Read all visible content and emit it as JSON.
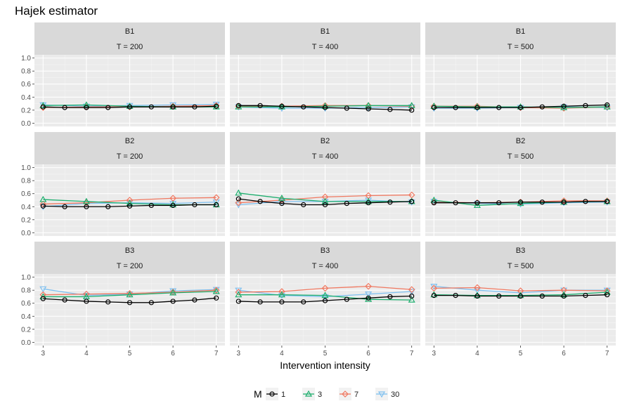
{
  "chart_data": {
    "type": "line",
    "title": "Hajek estimator",
    "xlabel": "Intervention intensity",
    "ylabel": "",
    "xlim": [
      3,
      7
    ],
    "ylim": [
      0,
      1
    ],
    "x_ticks": [
      "3",
      "4",
      "5",
      "6",
      "7"
    ],
    "y_ticks": [
      "0.0",
      "0.2",
      "0.4",
      "0.6",
      "0.8",
      "1.0"
    ],
    "facets": {
      "rows": [
        "B1",
        "B2",
        "B3"
      ],
      "cols": [
        "T = 200",
        "T = 400",
        "T = 500"
      ]
    },
    "legend": {
      "title": "M",
      "placement": "bottom",
      "entries": [
        {
          "name": "1",
          "color": "#000000",
          "marker": "circle"
        },
        {
          "name": "3",
          "color": "#1EAE6E",
          "marker": "triangle-up"
        },
        {
          "name": "7",
          "color": "#F07860",
          "marker": "diamond"
        },
        {
          "name": "30",
          "color": "#7EC0F0",
          "marker": "triangle-down"
        }
      ]
    },
    "panels": [
      {
        "row": "B1",
        "col": "T = 200",
        "series": [
          {
            "name": "1",
            "x": [
              3,
              3.5,
              4,
              4.5,
              5,
              5.5,
              6,
              6.5,
              7
            ],
            "values": [
              0.25,
              0.24,
              0.24,
              0.24,
              0.25,
              0.25,
              0.25,
              0.25,
              0.26
            ]
          },
          {
            "name": "3",
            "x": [
              3,
              4,
              5,
              6,
              7
            ],
            "values": [
              0.27,
              0.28,
              0.26,
              0.25,
              0.25
            ]
          },
          {
            "name": "7",
            "x": [
              3,
              4,
              5,
              6,
              7
            ],
            "values": [
              0.24,
              0.25,
              0.25,
              0.26,
              0.27
            ]
          },
          {
            "name": "30",
            "x": [
              3,
              4,
              5,
              6,
              7
            ],
            "values": [
              0.28,
              0.26,
              0.27,
              0.28,
              0.29
            ]
          }
        ]
      },
      {
        "row": "B1",
        "col": "T = 400",
        "series": [
          {
            "name": "1",
            "x": [
              3,
              3.5,
              4,
              4.5,
              5,
              5.5,
              6,
              6.5,
              7
            ],
            "values": [
              0.27,
              0.27,
              0.26,
              0.25,
              0.24,
              0.23,
              0.22,
              0.21,
              0.2
            ]
          },
          {
            "name": "3",
            "x": [
              3,
              4,
              5,
              6,
              7
            ],
            "values": [
              0.25,
              0.25,
              0.26,
              0.27,
              0.27
            ]
          },
          {
            "name": "7",
            "x": [
              3,
              4,
              5,
              6,
              7
            ],
            "values": [
              0.26,
              0.26,
              0.27,
              0.27,
              0.26
            ]
          },
          {
            "name": "30",
            "x": [
              3,
              4,
              5,
              6,
              7
            ],
            "values": [
              0.25,
              0.23,
              0.23,
              0.24,
              0.25
            ]
          }
        ]
      },
      {
        "row": "B1",
        "col": "T = 500",
        "series": [
          {
            "name": "1",
            "x": [
              3,
              3.5,
              4,
              4.5,
              5,
              5.5,
              6,
              6.5,
              7
            ],
            "values": [
              0.24,
              0.24,
              0.24,
              0.24,
              0.24,
              0.25,
              0.26,
              0.27,
              0.28
            ]
          },
          {
            "name": "3",
            "x": [
              3,
              4,
              5,
              6,
              7
            ],
            "values": [
              0.26,
              0.25,
              0.25,
              0.24,
              0.25
            ]
          },
          {
            "name": "7",
            "x": [
              3,
              4,
              5,
              6,
              7
            ],
            "values": [
              0.26,
              0.26,
              0.24,
              0.23,
              0.25
            ]
          },
          {
            "name": "30",
            "x": [
              3,
              4,
              5,
              6,
              7
            ],
            "values": [
              0.23,
              0.23,
              0.24,
              0.25,
              0.24
            ]
          }
        ]
      },
      {
        "row": "B2",
        "col": "T = 200",
        "series": [
          {
            "name": "1",
            "x": [
              3,
              3.5,
              4,
              4.5,
              5,
              5.5,
              6,
              6.5,
              7
            ],
            "values": [
              0.41,
              0.4,
              0.4,
              0.4,
              0.41,
              0.42,
              0.42,
              0.43,
              0.43
            ]
          },
          {
            "name": "3",
            "x": [
              3,
              4,
              5,
              6,
              7
            ],
            "values": [
              0.51,
              0.48,
              0.45,
              0.43,
              0.43
            ]
          },
          {
            "name": "7",
            "x": [
              3,
              4,
              5,
              6,
              7
            ],
            "values": [
              0.44,
              0.46,
              0.5,
              0.53,
              0.54
            ]
          },
          {
            "name": "30",
            "x": [
              3,
              4,
              5,
              6,
              7
            ],
            "values": [
              0.4,
              0.45,
              0.46,
              0.45,
              0.47
            ]
          }
        ]
      },
      {
        "row": "B2",
        "col": "T = 400",
        "series": [
          {
            "name": "1",
            "x": [
              3,
              3.5,
              4,
              4.5,
              5,
              5.5,
              6,
              6.5,
              7
            ],
            "values": [
              0.52,
              0.48,
              0.45,
              0.43,
              0.43,
              0.45,
              0.46,
              0.47,
              0.48
            ]
          },
          {
            "name": "3",
            "x": [
              3,
              4,
              5,
              6,
              7
            ],
            "values": [
              0.61,
              0.53,
              0.48,
              0.48,
              0.48
            ]
          },
          {
            "name": "7",
            "x": [
              3,
              4,
              5,
              6,
              7
            ],
            "values": [
              0.46,
              0.5,
              0.55,
              0.57,
              0.58
            ]
          },
          {
            "name": "30",
            "x": [
              3,
              4,
              5,
              6,
              7
            ],
            "values": [
              0.43,
              0.48,
              0.48,
              0.5,
              0.47
            ]
          }
        ]
      },
      {
        "row": "B2",
        "col": "T = 500",
        "series": [
          {
            "name": "1",
            "x": [
              3,
              3.5,
              4,
              4.5,
              5,
              5.5,
              6,
              6.5,
              7
            ],
            "values": [
              0.46,
              0.46,
              0.46,
              0.46,
              0.47,
              0.47,
              0.47,
              0.48,
              0.48
            ]
          },
          {
            "name": "3",
            "x": [
              3,
              4,
              5,
              6,
              7
            ],
            "values": [
              0.5,
              0.42,
              0.45,
              0.47,
              0.48
            ]
          },
          {
            "name": "7",
            "x": [
              3,
              4,
              5,
              6,
              7
            ],
            "values": [
              0.47,
              0.46,
              0.47,
              0.49,
              0.49
            ]
          },
          {
            "name": "30",
            "x": [
              3,
              4,
              5,
              6,
              7
            ],
            "values": [
              0.48,
              0.45,
              0.44,
              0.46,
              0.47
            ]
          }
        ]
      },
      {
        "row": "B3",
        "col": "T = 200",
        "series": [
          {
            "name": "1",
            "x": [
              3,
              3.5,
              4,
              4.5,
              5,
              5.5,
              6,
              6.5,
              7
            ],
            "values": [
              0.67,
              0.65,
              0.63,
              0.62,
              0.61,
              0.61,
              0.63,
              0.65,
              0.68
            ]
          },
          {
            "name": "3",
            "x": [
              3,
              4,
              5,
              6,
              7
            ],
            "values": [
              0.7,
              0.7,
              0.73,
              0.76,
              0.78
            ]
          },
          {
            "name": "7",
            "x": [
              3,
              4,
              5,
              6,
              7
            ],
            "values": [
              0.73,
              0.74,
              0.75,
              0.77,
              0.8
            ]
          },
          {
            "name": "30",
            "x": [
              3,
              4,
              5,
              6,
              7
            ],
            "values": [
              0.82,
              0.72,
              0.74,
              0.79,
              0.81
            ]
          }
        ]
      },
      {
        "row": "B3",
        "col": "T = 400",
        "series": [
          {
            "name": "1",
            "x": [
              3,
              3.5,
              4,
              4.5,
              5,
              5.5,
              6,
              6.5,
              7
            ],
            "values": [
              0.63,
              0.62,
              0.62,
              0.62,
              0.64,
              0.66,
              0.68,
              0.7,
              0.71
            ]
          },
          {
            "name": "3",
            "x": [
              3,
              4,
              5,
              6,
              7
            ],
            "values": [
              0.73,
              0.73,
              0.72,
              0.66,
              0.65
            ]
          },
          {
            "name": "7",
            "x": [
              3,
              4,
              5,
              6,
              7
            ],
            "values": [
              0.77,
              0.78,
              0.83,
              0.86,
              0.81
            ]
          },
          {
            "name": "30",
            "x": [
              3,
              4,
              5,
              6,
              7
            ],
            "values": [
              0.8,
              0.72,
              0.7,
              0.74,
              0.78
            ]
          }
        ]
      },
      {
        "row": "B3",
        "col": "T = 500",
        "series": [
          {
            "name": "1",
            "x": [
              3,
              3.5,
              4,
              4.5,
              5,
              5.5,
              6,
              6.5,
              7
            ],
            "values": [
              0.72,
              0.72,
              0.71,
              0.71,
              0.71,
              0.71,
              0.71,
              0.72,
              0.73
            ]
          },
          {
            "name": "3",
            "x": [
              3,
              4,
              5,
              6,
              7
            ],
            "values": [
              0.73,
              0.72,
              0.72,
              0.73,
              0.77
            ]
          },
          {
            "name": "7",
            "x": [
              3,
              4,
              5,
              6,
              7
            ],
            "values": [
              0.83,
              0.84,
              0.79,
              0.8,
              0.79
            ]
          },
          {
            "name": "30",
            "x": [
              3,
              4,
              5,
              6,
              7
            ],
            "values": [
              0.86,
              0.8,
              0.76,
              0.8,
              0.8
            ]
          }
        ]
      }
    ]
  }
}
